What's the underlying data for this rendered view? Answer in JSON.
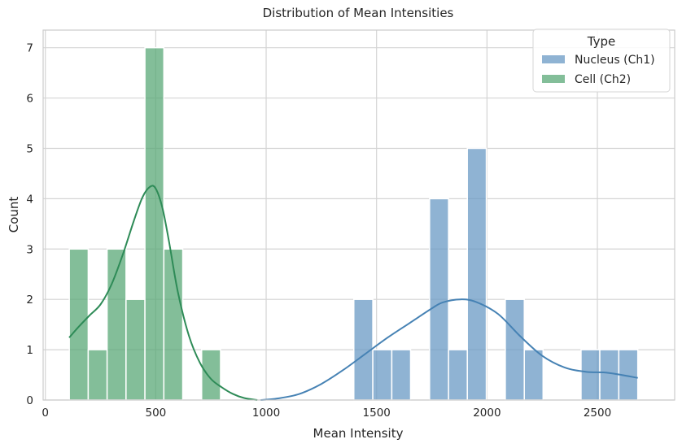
{
  "chart_data": {
    "type": "histogram",
    "title": "Distribution of Mean Intensities",
    "xlabel": "Mean Intensity",
    "ylabel": "Count",
    "xlim": [
      -10,
      2850
    ],
    "ylim": [
      0,
      7.35
    ],
    "xticks": [
      0,
      500,
      1000,
      1500,
      2000,
      2500
    ],
    "yticks": [
      0,
      1,
      2,
      3,
      4,
      5,
      6,
      7
    ],
    "grid": true,
    "bin_width": 85.6,
    "bin_start": 108.6,
    "legend": {
      "title": "Type",
      "placement": "top-right",
      "entries": [
        "Nucleus (Ch1)",
        "Cell (Ch2)"
      ]
    },
    "series": [
      {
        "name": "Nucleus (Ch1)",
        "color": "#6a9ac4",
        "line_color": "#4682b4",
        "bars": [
          {
            "x0": 1397,
            "x1": 1483,
            "count": 2
          },
          {
            "x0": 1483,
            "x1": 1569,
            "count": 1
          },
          {
            "x0": 1569,
            "x1": 1654,
            "count": 1
          },
          {
            "x0": 1740,
            "x1": 1826,
            "count": 4
          },
          {
            "x0": 1826,
            "x1": 1911,
            "count": 1
          },
          {
            "x0": 1911,
            "x1": 1997,
            "count": 5
          },
          {
            "x0": 2083,
            "x1": 2169,
            "count": 2
          },
          {
            "x0": 2169,
            "x1": 2254,
            "count": 1
          },
          {
            "x0": 2426,
            "x1": 2511,
            "count": 1
          },
          {
            "x0": 2511,
            "x1": 2597,
            "count": 1
          },
          {
            "x0": 2597,
            "x1": 2683,
            "count": 1
          }
        ],
        "kde": [
          [
            975,
            0.0
          ],
          [
            1050,
            0.03
          ],
          [
            1150,
            0.12
          ],
          [
            1250,
            0.32
          ],
          [
            1350,
            0.6
          ],
          [
            1450,
            0.92
          ],
          [
            1550,
            1.24
          ],
          [
            1650,
            1.53
          ],
          [
            1750,
            1.82
          ],
          [
            1800,
            1.94
          ],
          [
            1880,
            2.0
          ],
          [
            1950,
            1.95
          ],
          [
            2050,
            1.71
          ],
          [
            2150,
            1.27
          ],
          [
            2250,
            0.88
          ],
          [
            2350,
            0.65
          ],
          [
            2450,
            0.56
          ],
          [
            2550,
            0.54
          ],
          [
            2683,
            0.44
          ]
        ]
      },
      {
        "name": "Cell (Ch2)",
        "color": "#5aa877",
        "line_color": "#2e8b57",
        "bars": [
          {
            "x0": 108.6,
            "x1": 194.2,
            "count": 3
          },
          {
            "x0": 194.2,
            "x1": 279.8,
            "count": 1
          },
          {
            "x0": 279.8,
            "x1": 365.4,
            "count": 3
          },
          {
            "x0": 365.4,
            "x1": 451.0,
            "count": 2
          },
          {
            "x0": 451.0,
            "x1": 536.6,
            "count": 7
          },
          {
            "x0": 536.6,
            "x1": 622.2,
            "count": 3
          },
          {
            "x0": 707.8,
            "x1": 793.4,
            "count": 1
          }
        ],
        "kde": [
          [
            108,
            1.24
          ],
          [
            150,
            1.45
          ],
          [
            200,
            1.68
          ],
          [
            250,
            1.9
          ],
          [
            300,
            2.3
          ],
          [
            350,
            2.88
          ],
          [
            400,
            3.55
          ],
          [
            440,
            4.03
          ],
          [
            475,
            4.24
          ],
          [
            500,
            4.2
          ],
          [
            530,
            3.82
          ],
          [
            560,
            3.15
          ],
          [
            600,
            2.15
          ],
          [
            650,
            1.28
          ],
          [
            700,
            0.74
          ],
          [
            750,
            0.42
          ],
          [
            800,
            0.25
          ],
          [
            850,
            0.12
          ],
          [
            900,
            0.04
          ],
          [
            960,
            0.0
          ]
        ]
      }
    ]
  }
}
